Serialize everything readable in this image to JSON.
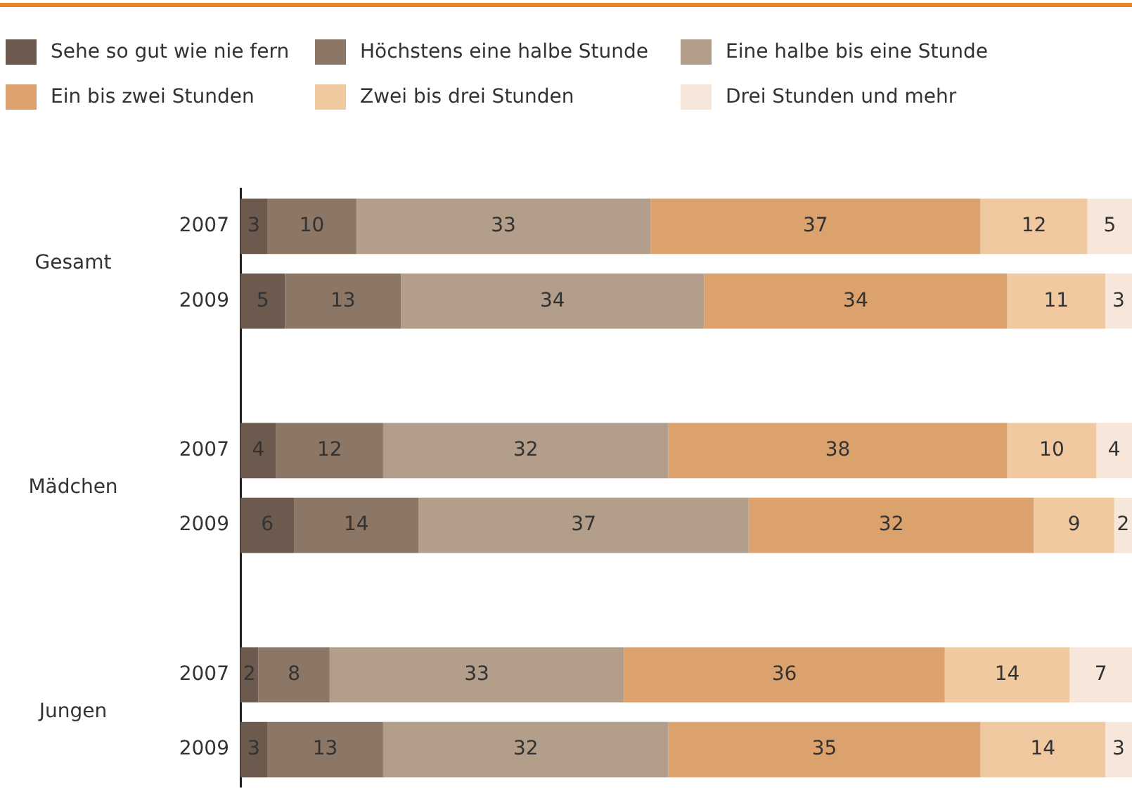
{
  "chart_data": {
    "type": "bar",
    "orientation": "horizontal",
    "stacked": true,
    "data_labels": true,
    "grid": false,
    "legend": "top",
    "tick_labels": "y",
    "xlim": [
      0,
      100
    ],
    "categories": [
      "2007",
      "2009",
      null,
      "2007",
      "2009",
      null,
      "2007",
      "2009"
    ],
    "annotations": [
      "Gesamt",
      "Mädchen",
      "Jungen"
    ],
    "series": [
      {
        "name": "Sehe so gut wie nie fern",
        "color": "#6b5a4d",
        "values": [
          3,
          5,
          null,
          4,
          6,
          null,
          2,
          3
        ]
      },
      {
        "name": "Höchstens eine halbe Stunde",
        "color": "#8c7666",
        "values": [
          10,
          13,
          null,
          12,
          14,
          null,
          8,
          13
        ]
      },
      {
        "name": "Eine halbe bis eine Stunde",
        "color": "#b39d8b",
        "values": [
          33,
          34,
          null,
          32,
          37,
          null,
          33,
          32
        ]
      },
      {
        "name": "Ein bis zwei Stunden",
        "color": "#dca26d",
        "values": [
          37,
          34,
          null,
          38,
          32,
          null,
          36,
          35
        ]
      },
      {
        "name": "Zwei bis drei Stunden",
        "color": "#f1c9a0",
        "values": [
          12,
          11,
          null,
          10,
          9,
          null,
          14,
          14
        ]
      },
      {
        "name": "Drei Stunden und mehr",
        "color": "#f6e7da",
        "values": [
          5,
          3,
          null,
          4,
          2,
          null,
          7,
          3
        ]
      }
    ]
  }
}
